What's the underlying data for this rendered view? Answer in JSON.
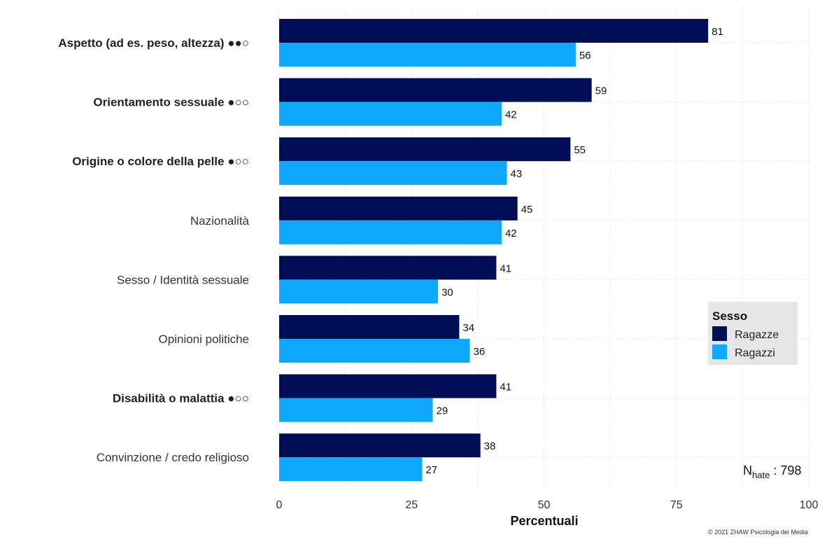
{
  "chart_data": {
    "type": "bar",
    "orientation": "horizontal",
    "categories": [
      "Aspetto (ad es. peso, altezza) ●●○",
      "Orientamento sessuale ●○○",
      "Origine o colore della pelle ●○○",
      "Nazionalità",
      "Sesso / Identità sessuale",
      "Opinioni politiche",
      "Disabilità o malattia ●○○",
      "Convinzione / credo religioso"
    ],
    "bold_categories": [
      true,
      true,
      true,
      false,
      false,
      false,
      true,
      false
    ],
    "series": [
      {
        "name": "Ragazze",
        "color": "#000F55",
        "values": [
          81,
          59,
          55,
          45,
          41,
          34,
          41,
          38
        ]
      },
      {
        "name": "Ragazzi",
        "color": "#0EA8FF",
        "values": [
          56,
          42,
          43,
          42,
          30,
          36,
          29,
          27
        ]
      }
    ],
    "xlabel": "Percentuali",
    "xlim": [
      0,
      100
    ],
    "xticks": [
      0,
      25,
      50,
      75,
      100
    ],
    "grid": true,
    "legend": {
      "title": "Sesso",
      "position": "right"
    },
    "annotation": {
      "main": "N",
      "sub": "hate",
      "suffix": " : 798"
    },
    "copyright": "© 2021 ZHAW Psicologia dei Media"
  }
}
